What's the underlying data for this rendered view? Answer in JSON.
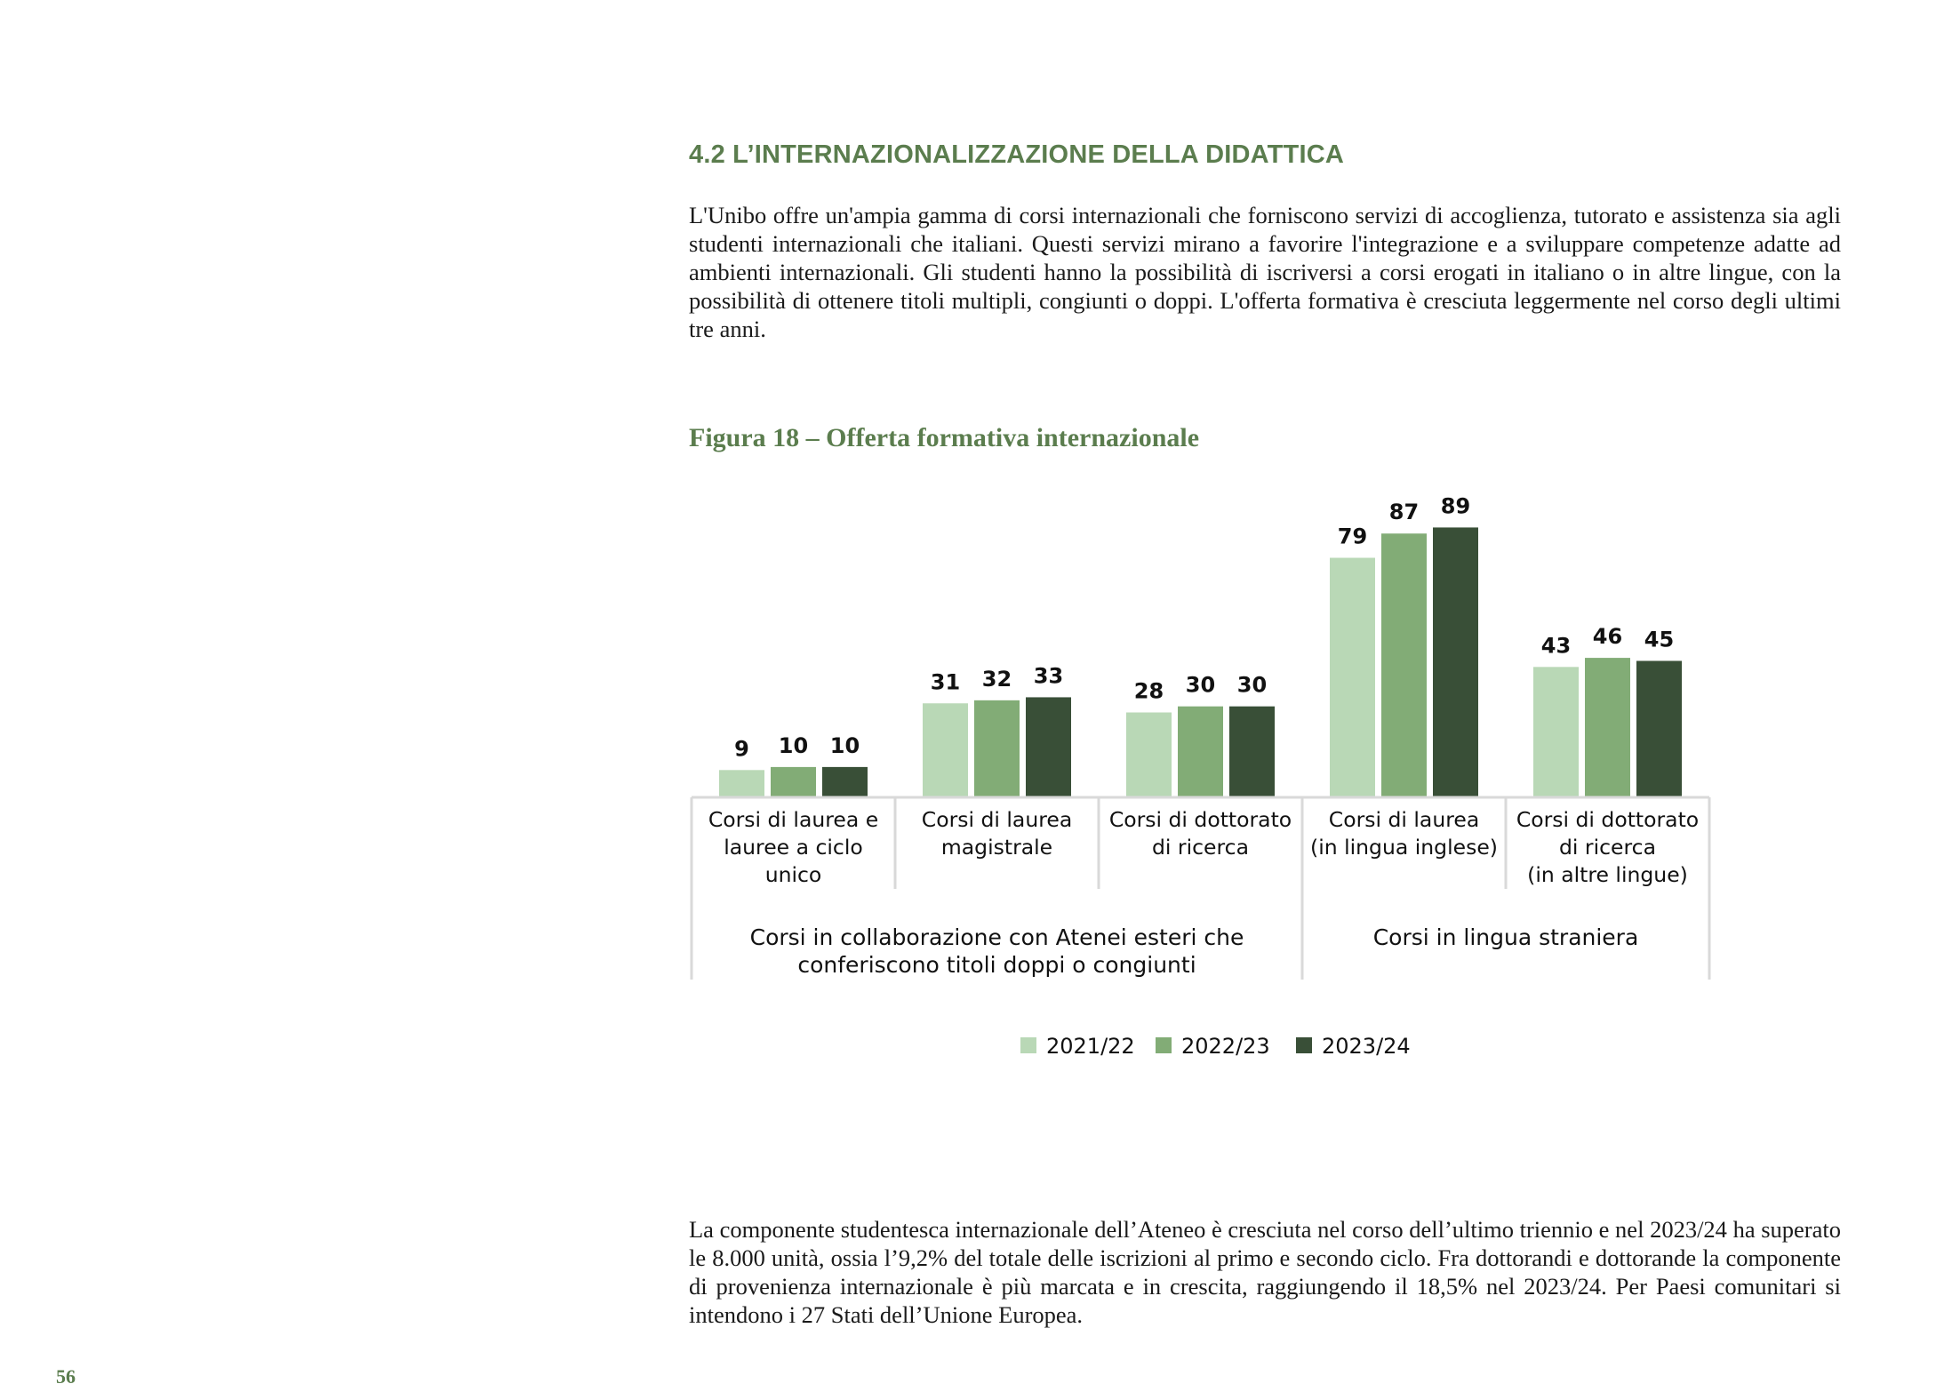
{
  "section": {
    "title": "4.2 L’INTERNAZIONALIZZAZIONE DELLA DIDATTICA"
  },
  "intro_paragraph": "L'Unibo offre un'ampia gamma di corsi internazionali che forniscono servizi di accoglienza, tutorato e assistenza sia agli studenti internazionali che italiani. Questi servizi mirano a favorire l'integrazione e a sviluppare competenze adatte ad ambienti internazionali. Gli studenti hanno la possibilità di iscriversi a corsi erogati in italiano o in altre lingue, con la possibilità di ottenere titoli multipli, congiunti o doppi. L'offerta formativa è cresciuta leggermente nel corso degli ultimi tre anni.",
  "figure": {
    "title": "Figura 18 – Offerta formativa internazionale"
  },
  "colors": {
    "accent": "#5b7d4e",
    "series_2021_22": "#b9d8b6",
    "series_2022_23": "#82ac76",
    "series_2023_24": "#394f37",
    "axis": "#d9d9d9"
  },
  "chart_data": {
    "type": "bar",
    "categories": [
      [
        "Corsi di laurea e",
        "lauree a ciclo",
        "unico"
      ],
      [
        "Corsi di laurea",
        "magistrale"
      ],
      [
        "Corsi di dottorato",
        "di ricerca"
      ],
      [
        "Corsi di laurea",
        "(in lingua inglese)"
      ],
      [
        "Corsi di dottorato",
        "di ricerca",
        "(in altre lingue)"
      ]
    ],
    "groups": [
      {
        "label": [
          "Corsi in collaborazione con Atenei esteri che",
          "conferiscono titoli doppi o congiunti"
        ],
        "category_indices": [
          0,
          1,
          2
        ]
      },
      {
        "label": [
          "Corsi in lingua straniera"
        ],
        "category_indices": [
          3,
          4
        ]
      }
    ],
    "series": [
      {
        "name": "2021/22",
        "values": [
          9,
          31,
          28,
          79,
          43
        ]
      },
      {
        "name": "2022/23",
        "values": [
          10,
          32,
          30,
          87,
          46
        ]
      },
      {
        "name": "2023/24",
        "values": [
          10,
          33,
          30,
          89,
          45
        ]
      }
    ],
    "ylim": [
      0,
      90
    ],
    "data_labels": true,
    "grid": false,
    "legend_position": "bottom"
  },
  "closing_paragraph": "La componente studentesca internazionale dell’Ateneo è cresciuta nel corso dell’ultimo triennio e nel 2023/24 ha superato le 8.000 unità, ossia l’9,2% del totale delle iscrizioni al primo e secondo ciclo. Fra dottorandi e dottorande la componente di provenienza internazionale è più marcata e in crescita, raggiungendo il 18,5% nel 2023/24. Per Paesi comunitari si intendono i 27 Stati dell’Unione Europea.",
  "page_number": "56"
}
